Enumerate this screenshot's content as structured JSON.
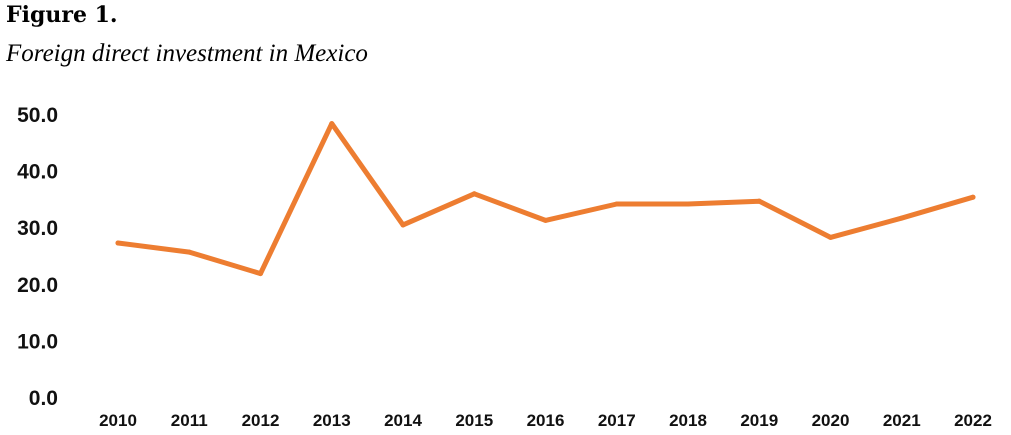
{
  "figure": {
    "label": "Figure 1.",
    "title": "Foreign direct investment in Mexico"
  },
  "chart_data": {
    "type": "line",
    "title": "",
    "xlabel": "",
    "ylabel": "",
    "categories": [
      "2010",
      "2011",
      "2012",
      "2013",
      "2014",
      "2015",
      "2016",
      "2017",
      "2018",
      "2019",
      "2020",
      "2021",
      "2022"
    ],
    "series": [
      {
        "values": [
          27.2,
          25.6,
          21.8,
          48.3,
          30.4,
          35.9,
          31.2,
          34.1,
          34.1,
          34.6,
          28.2,
          31.6,
          35.3
        ],
        "color": "#ED7D31"
      }
    ],
    "ylim": [
      0,
      50
    ],
    "yticks": [
      "0.0",
      "10.0",
      "20.0",
      "30.0",
      "40.0",
      "50.0"
    ],
    "grid": false,
    "legend": "none"
  }
}
